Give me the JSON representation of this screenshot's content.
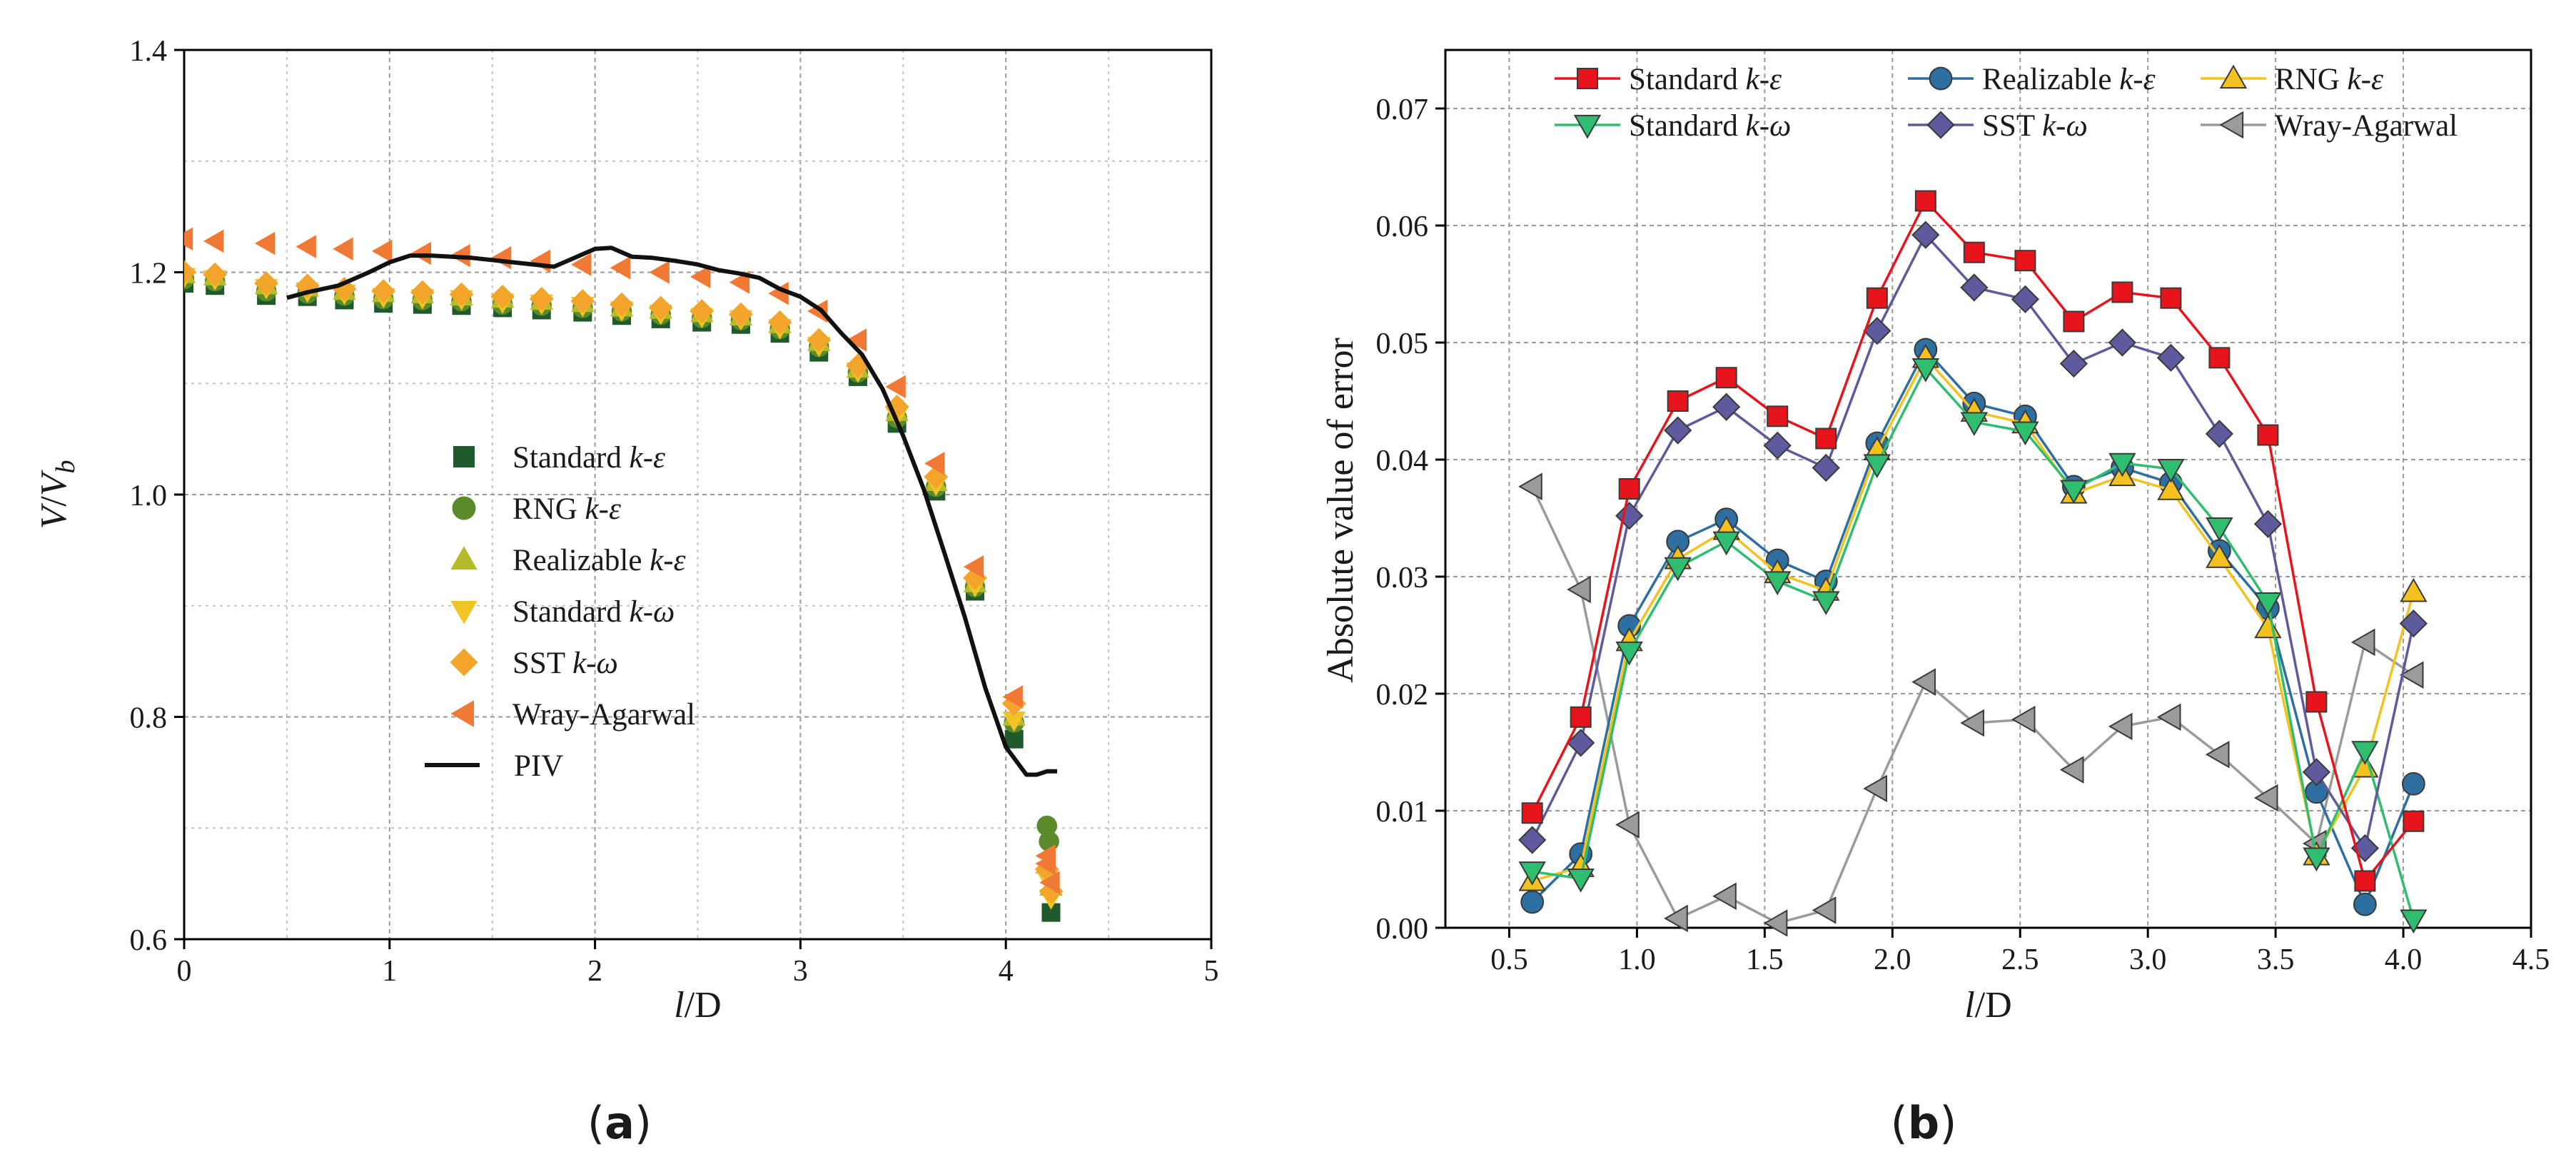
{
  "figure_labels": {
    "a_open": "(",
    "a_letter": "a",
    "a_close": ")",
    "b_open": "(",
    "b_letter": "b",
    "b_close": ")"
  },
  "chart_data": [
    {
      "id": "a",
      "type": "scatter",
      "xlabel_italic": "l",
      "xlabel_rest": "/D",
      "ylabel_v": "V",
      "ylabel_slash": "/",
      "ylabel_v2": "V",
      "ylabel_sub": "b",
      "xlim": [
        0,
        5
      ],
      "ylim": [
        0.6,
        1.4
      ],
      "xticks": [
        0,
        1,
        2,
        3,
        4,
        5
      ],
      "xtick_labels": [
        "0",
        "1",
        "2",
        "3",
        "4",
        "5"
      ],
      "yticks": [
        0.6,
        0.8,
        1.0,
        1.2,
        1.4
      ],
      "ytick_labels": [
        "0.6",
        "0.8",
        "1.0",
        "1.2",
        "1.4"
      ],
      "grid": true,
      "legend_position": "center",
      "series": [
        {
          "name_plain": "Standard ",
          "name_italic": "k-ε",
          "marker": "square",
          "color": "#1f5a2c",
          "x": [
            0,
            0.15,
            0.4,
            0.6,
            0.78,
            0.97,
            1.16,
            1.35,
            1.55,
            1.74,
            1.94,
            2.13,
            2.32,
            2.52,
            2.71,
            2.9,
            3.09,
            3.28,
            3.47,
            3.66,
            3.85,
            4.04,
            4.22
          ],
          "y": [
            1.19,
            1.188,
            1.179,
            1.178,
            1.175,
            1.172,
            1.171,
            1.17,
            1.168,
            1.166,
            1.164,
            1.161,
            1.158,
            1.155,
            1.153,
            1.145,
            1.128,
            1.106,
            1.064,
            1.003,
            0.913,
            0.78,
            0.624
          ]
        },
        {
          "name_plain": "RNG ",
          "name_italic": "k-ε",
          "marker": "circle",
          "color": "#5b8a2b",
          "x": [
            0,
            0.15,
            0.4,
            0.6,
            0.78,
            0.97,
            1.16,
            1.35,
            1.55,
            1.74,
            1.94,
            2.13,
            2.32,
            2.52,
            2.71,
            2.9,
            3.09,
            3.28,
            3.47,
            3.66,
            3.85,
            4.04,
            4.2,
            4.21
          ],
          "y": [
            1.194,
            1.192,
            1.183,
            1.181,
            1.179,
            1.176,
            1.175,
            1.174,
            1.171,
            1.17,
            1.168,
            1.165,
            1.162,
            1.159,
            1.157,
            1.149,
            1.133,
            1.11,
            1.069,
            1.007,
            0.917,
            0.795,
            0.702,
            0.688
          ]
        },
        {
          "name_plain": "Realizable ",
          "name_italic": "k-ε",
          "marker": "triangle-up",
          "color": "#b7bb2a",
          "x": [
            0,
            0.15,
            0.4,
            0.6,
            0.78,
            0.97,
            1.16,
            1.35,
            1.55,
            1.74,
            1.94,
            2.13,
            2.32,
            2.52,
            2.71,
            2.9,
            3.09,
            3.28,
            3.47,
            3.66,
            3.85,
            4.04,
            4.2,
            4.22
          ],
          "y": [
            1.198,
            1.196,
            1.188,
            1.186,
            1.183,
            1.181,
            1.18,
            1.178,
            1.176,
            1.174,
            1.172,
            1.168,
            1.166,
            1.163,
            1.16,
            1.153,
            1.137,
            1.113,
            1.074,
            1.011,
            0.92,
            0.8,
            0.667,
            0.647
          ]
        },
        {
          "name_plain": "Standard ",
          "name_italic": "k-ω",
          "marker": "triangle-down",
          "color": "#f0c424",
          "x": [
            0,
            0.15,
            0.4,
            0.6,
            0.78,
            0.97,
            1.16,
            1.35,
            1.55,
            1.74,
            1.94,
            2.13,
            2.32,
            2.52,
            2.71,
            2.9,
            3.09,
            3.28,
            3.47,
            3.66,
            3.85,
            4.04,
            4.2,
            4.22
          ],
          "y": [
            1.196,
            1.194,
            1.186,
            1.183,
            1.181,
            1.178,
            1.177,
            1.176,
            1.173,
            1.172,
            1.17,
            1.166,
            1.163,
            1.16,
            1.158,
            1.15,
            1.134,
            1.111,
            1.071,
            1.009,
            0.918,
            0.797,
            0.655,
            0.637
          ]
        },
        {
          "name_plain": "SST ",
          "name_italic": "k-ω",
          "marker": "diamond",
          "color": "#f2a52a",
          "x": [
            0,
            0.15,
            0.4,
            0.6,
            0.78,
            0.97,
            1.16,
            1.35,
            1.55,
            1.74,
            1.94,
            2.13,
            2.32,
            2.52,
            2.71,
            2.9,
            3.09,
            3.28,
            3.47,
            3.66,
            3.85,
            4.04,
            4.2,
            4.22
          ],
          "y": [
            1.2,
            1.198,
            1.19,
            1.188,
            1.185,
            1.183,
            1.182,
            1.18,
            1.178,
            1.176,
            1.174,
            1.171,
            1.168,
            1.165,
            1.162,
            1.155,
            1.139,
            1.116,
            1.079,
            1.016,
            0.925,
            0.812,
            0.663,
            0.643
          ]
        },
        {
          "name_plain": "Wray-Agarwal",
          "name_italic": "",
          "marker": "triangle-left",
          "color": "#f07a35",
          "x": [
            0,
            0.15,
            0.4,
            0.6,
            0.78,
            0.97,
            1.16,
            1.35,
            1.55,
            1.74,
            1.94,
            2.13,
            2.32,
            2.52,
            2.71,
            2.9,
            3.09,
            3.28,
            3.47,
            3.66,
            3.85,
            4.04,
            4.2,
            4.2,
            4.22
          ],
          "y": [
            1.23,
            1.228,
            1.226,
            1.223,
            1.221,
            1.219,
            1.217,
            1.215,
            1.213,
            1.21,
            1.207,
            1.204,
            1.2,
            1.196,
            1.191,
            1.181,
            1.165,
            1.139,
            1.097,
            1.028,
            0.935,
            0.818,
            0.675,
            0.668,
            0.651
          ]
        },
        {
          "name_plain": "PIV",
          "name_italic": "",
          "marker": "line",
          "color": "#111111",
          "x": [
            0.5,
            0.6,
            0.75,
            0.9,
            1.0,
            1.1,
            1.2,
            1.4,
            1.6,
            1.8,
            1.9,
            2.0,
            2.08,
            2.18,
            2.28,
            2.4,
            2.5,
            2.6,
            2.7,
            2.8,
            2.9,
            3.0,
            3.1,
            3.2,
            3.3,
            3.4,
            3.5,
            3.6,
            3.7,
            3.8,
            3.9,
            4.0,
            4.1,
            4.15,
            4.2,
            4.25
          ],
          "y": [
            1.177,
            1.182,
            1.188,
            1.2,
            1.209,
            1.215,
            1.215,
            1.213,
            1.209,
            1.205,
            1.213,
            1.221,
            1.222,
            1.214,
            1.213,
            1.21,
            1.207,
            1.202,
            1.199,
            1.195,
            1.185,
            1.178,
            1.166,
            1.145,
            1.126,
            1.095,
            1.053,
            1.005,
            0.948,
            0.89,
            0.826,
            0.773,
            0.748,
            0.748,
            0.751,
            0.751
          ]
        }
      ]
    },
    {
      "id": "b",
      "type": "line",
      "xlabel_italic": "l",
      "xlabel_rest": "/D",
      "ylabel": "Absolute value of error",
      "xlim": [
        0.25,
        4.5
      ],
      "ylim": [
        0,
        0.075
      ],
      "xticks": [
        0.5,
        1.0,
        1.5,
        2.0,
        2.5,
        3.0,
        3.5,
        4.0,
        4.5
      ],
      "xtick_labels": [
        "0.5",
        "1.0",
        "1.5",
        "2.0",
        "2.5",
        "3.0",
        "3.5",
        "4.0",
        "4.5"
      ],
      "yticks": [
        0,
        0.01,
        0.02,
        0.03,
        0.04,
        0.05,
        0.06,
        0.07
      ],
      "ytick_labels": [
        "0.00",
        "0.01",
        "0.02",
        "0.03",
        "0.04",
        "0.05",
        "0.06",
        "0.07"
      ],
      "grid": true,
      "legend_position": "top",
      "x": [
        0.59,
        0.78,
        0.97,
        1.16,
        1.35,
        1.55,
        1.74,
        1.94,
        2.13,
        2.32,
        2.52,
        2.71,
        2.9,
        3.09,
        3.28,
        3.47,
        3.66,
        3.85,
        4.04
      ],
      "series": [
        {
          "name_plain": "Standard ",
          "name_italic": "k-ε",
          "marker": "square",
          "color": "#e8141b",
          "values": [
            0.0098,
            0.018,
            0.0375,
            0.045,
            0.047,
            0.0437,
            0.0418,
            0.0538,
            0.0621,
            0.0577,
            0.057,
            0.0518,
            0.0543,
            0.0538,
            0.0487,
            0.0421,
            0.0193,
            0.004,
            0.0091
          ]
        },
        {
          "name_plain": "Realizable ",
          "name_italic": "k-ε",
          "marker": "circle",
          "color": "#2e6fa2",
          "values": [
            0.0022,
            0.0063,
            0.0258,
            0.033,
            0.0349,
            0.0314,
            0.0296,
            0.0414,
            0.0494,
            0.0448,
            0.0437,
            0.0377,
            0.0393,
            0.038,
            0.0322,
            0.0273,
            0.0116,
            0.002,
            0.0123
          ]
        },
        {
          "name_plain": "RNG ",
          "name_italic": "k-ε",
          "marker": "triangle-up",
          "color": "#f4c21e",
          "values": [
            0.004,
            0.0052,
            0.0245,
            0.0315,
            0.034,
            0.0303,
            0.0288,
            0.0408,
            0.0487,
            0.0441,
            0.0431,
            0.0371,
            0.0386,
            0.0374,
            0.0316,
            0.0256,
            0.0062,
            0.0137,
            0.0287
          ]
        },
        {
          "name_plain": "Standard ",
          "name_italic": "k-ω",
          "marker": "triangle-down",
          "color": "#2fbd6f",
          "values": [
            0.0048,
            0.0042,
            0.0236,
            0.0308,
            0.033,
            0.0296,
            0.0279,
            0.0396,
            0.0478,
            0.0432,
            0.0424,
            0.0374,
            0.0397,
            0.0392,
            0.0342,
            0.0278,
            0.006,
            0.0151,
            0.0007
          ]
        },
        {
          "name_plain": "SST ",
          "name_italic": "k-ω",
          "marker": "diamond",
          "color": "#5d5a9e",
          "values": [
            0.0075,
            0.0158,
            0.0352,
            0.0425,
            0.0445,
            0.0412,
            0.0393,
            0.051,
            0.0592,
            0.0547,
            0.0537,
            0.0482,
            0.05,
            0.0487,
            0.0422,
            0.0345,
            0.0133,
            0.0068,
            0.026
          ]
        },
        {
          "name_plain": "Wray-Agarwal",
          "name_italic": "",
          "marker": "triangle-left",
          "color": "#9b9b9b",
          "values": [
            0.0377,
            0.0289,
            0.0088,
            0.0008,
            0.0027,
            0.0004,
            0.0015,
            0.0119,
            0.021,
            0.0175,
            0.0178,
            0.0135,
            0.0172,
            0.018,
            0.0148,
            0.0111,
            0.0072,
            0.0244,
            0.0216
          ]
        }
      ]
    }
  ]
}
